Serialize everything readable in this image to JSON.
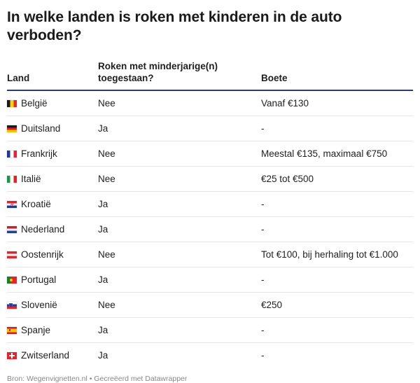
{
  "chart_data": {
    "type": "table",
    "title": "In welke landen is roken met kinderen in de auto verboden?",
    "columns": [
      "Land",
      "Roken met minderjarige(n) toegestaan?",
      "Boete"
    ],
    "rows": [
      {
        "land": "België",
        "toegestaan": "Nee",
        "boete": "Vanaf €130",
        "flag": "be-flag-icon"
      },
      {
        "land": "Duitsland",
        "toegestaan": "Ja",
        "boete": "-",
        "flag": "de-flag-icon"
      },
      {
        "land": "Frankrijk",
        "toegestaan": "Nee",
        "boete": "Meestal €135, maximaal €750",
        "flag": "fr-flag-icon"
      },
      {
        "land": "Italië",
        "toegestaan": "Nee",
        "boete": "€25 tot €500",
        "flag": "it-flag-icon"
      },
      {
        "land": "Kroatië",
        "toegestaan": "Ja",
        "boete": "-",
        "flag": "hr-flag-icon"
      },
      {
        "land": "Nederland",
        "toegestaan": "Ja",
        "boete": "-",
        "flag": "nl-flag-icon"
      },
      {
        "land": "Oostenrijk",
        "toegestaan": "Nee",
        "boete": "Tot €100, bij herhaling tot €1.000",
        "flag": "at-flag-icon"
      },
      {
        "land": "Portugal",
        "toegestaan": "Ja",
        "boete": "-",
        "flag": "pt-flag-icon"
      },
      {
        "land": "Slovenië",
        "toegestaan": "Nee",
        "boete": "€250",
        "flag": "si-flag-icon"
      },
      {
        "land": "Spanje",
        "toegestaan": "Ja",
        "boete": "-",
        "flag": "es-flag-icon"
      },
      {
        "land": "Zwitserland",
        "toegestaan": "Ja",
        "boete": "-",
        "flag": "ch-flag-icon"
      }
    ],
    "source": "Bron: Wegenvignetten.nl • Gecreëerd met Datawrapper"
  },
  "colors": {
    "header_rule": "#2f3c6b",
    "row_rule": "#e6e6e6",
    "source_text": "#888888"
  }
}
